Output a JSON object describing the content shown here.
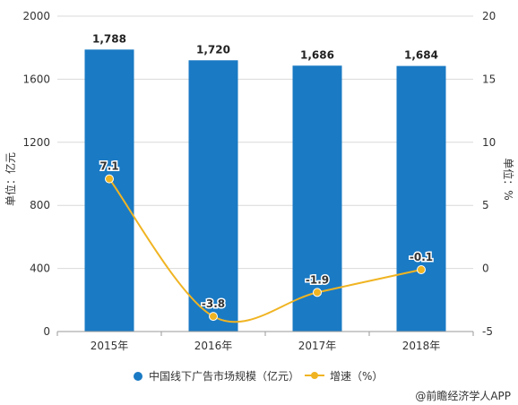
{
  "chart_data": {
    "type": "bar",
    "categories": [
      "2015年",
      "2016年",
      "2017年",
      "2018年"
    ],
    "series": [
      {
        "name": "中国线下广告市场规模（亿元）",
        "type": "bar",
        "axis": "left",
        "color": "#1a7ac4",
        "values": [
          1788,
          1720,
          1686,
          1684
        ],
        "labels": [
          "1,788",
          "1,720",
          "1,686",
          "1,684"
        ]
      },
      {
        "name": "增速（%）",
        "type": "line",
        "axis": "right",
        "color": "#f0b422",
        "values": [
          7.1,
          -3.8,
          -1.9,
          -0.1
        ],
        "labels": [
          "7.1",
          "-3.8",
          "-1.9",
          "-0.1"
        ]
      }
    ],
    "ylabel_left": "单位：亿元",
    "ylabel_right": "单位：%",
    "ylim_left": [
      0,
      2000
    ],
    "yticks_left": [
      0,
      400,
      800,
      1200,
      1600,
      2000
    ],
    "ylim_right": [
      -5,
      20
    ],
    "yticks_right": [
      -5,
      0,
      5,
      10,
      15,
      20
    ],
    "grid": true,
    "legend_position": "bottom"
  },
  "source": "@前瞻经济学人APP"
}
